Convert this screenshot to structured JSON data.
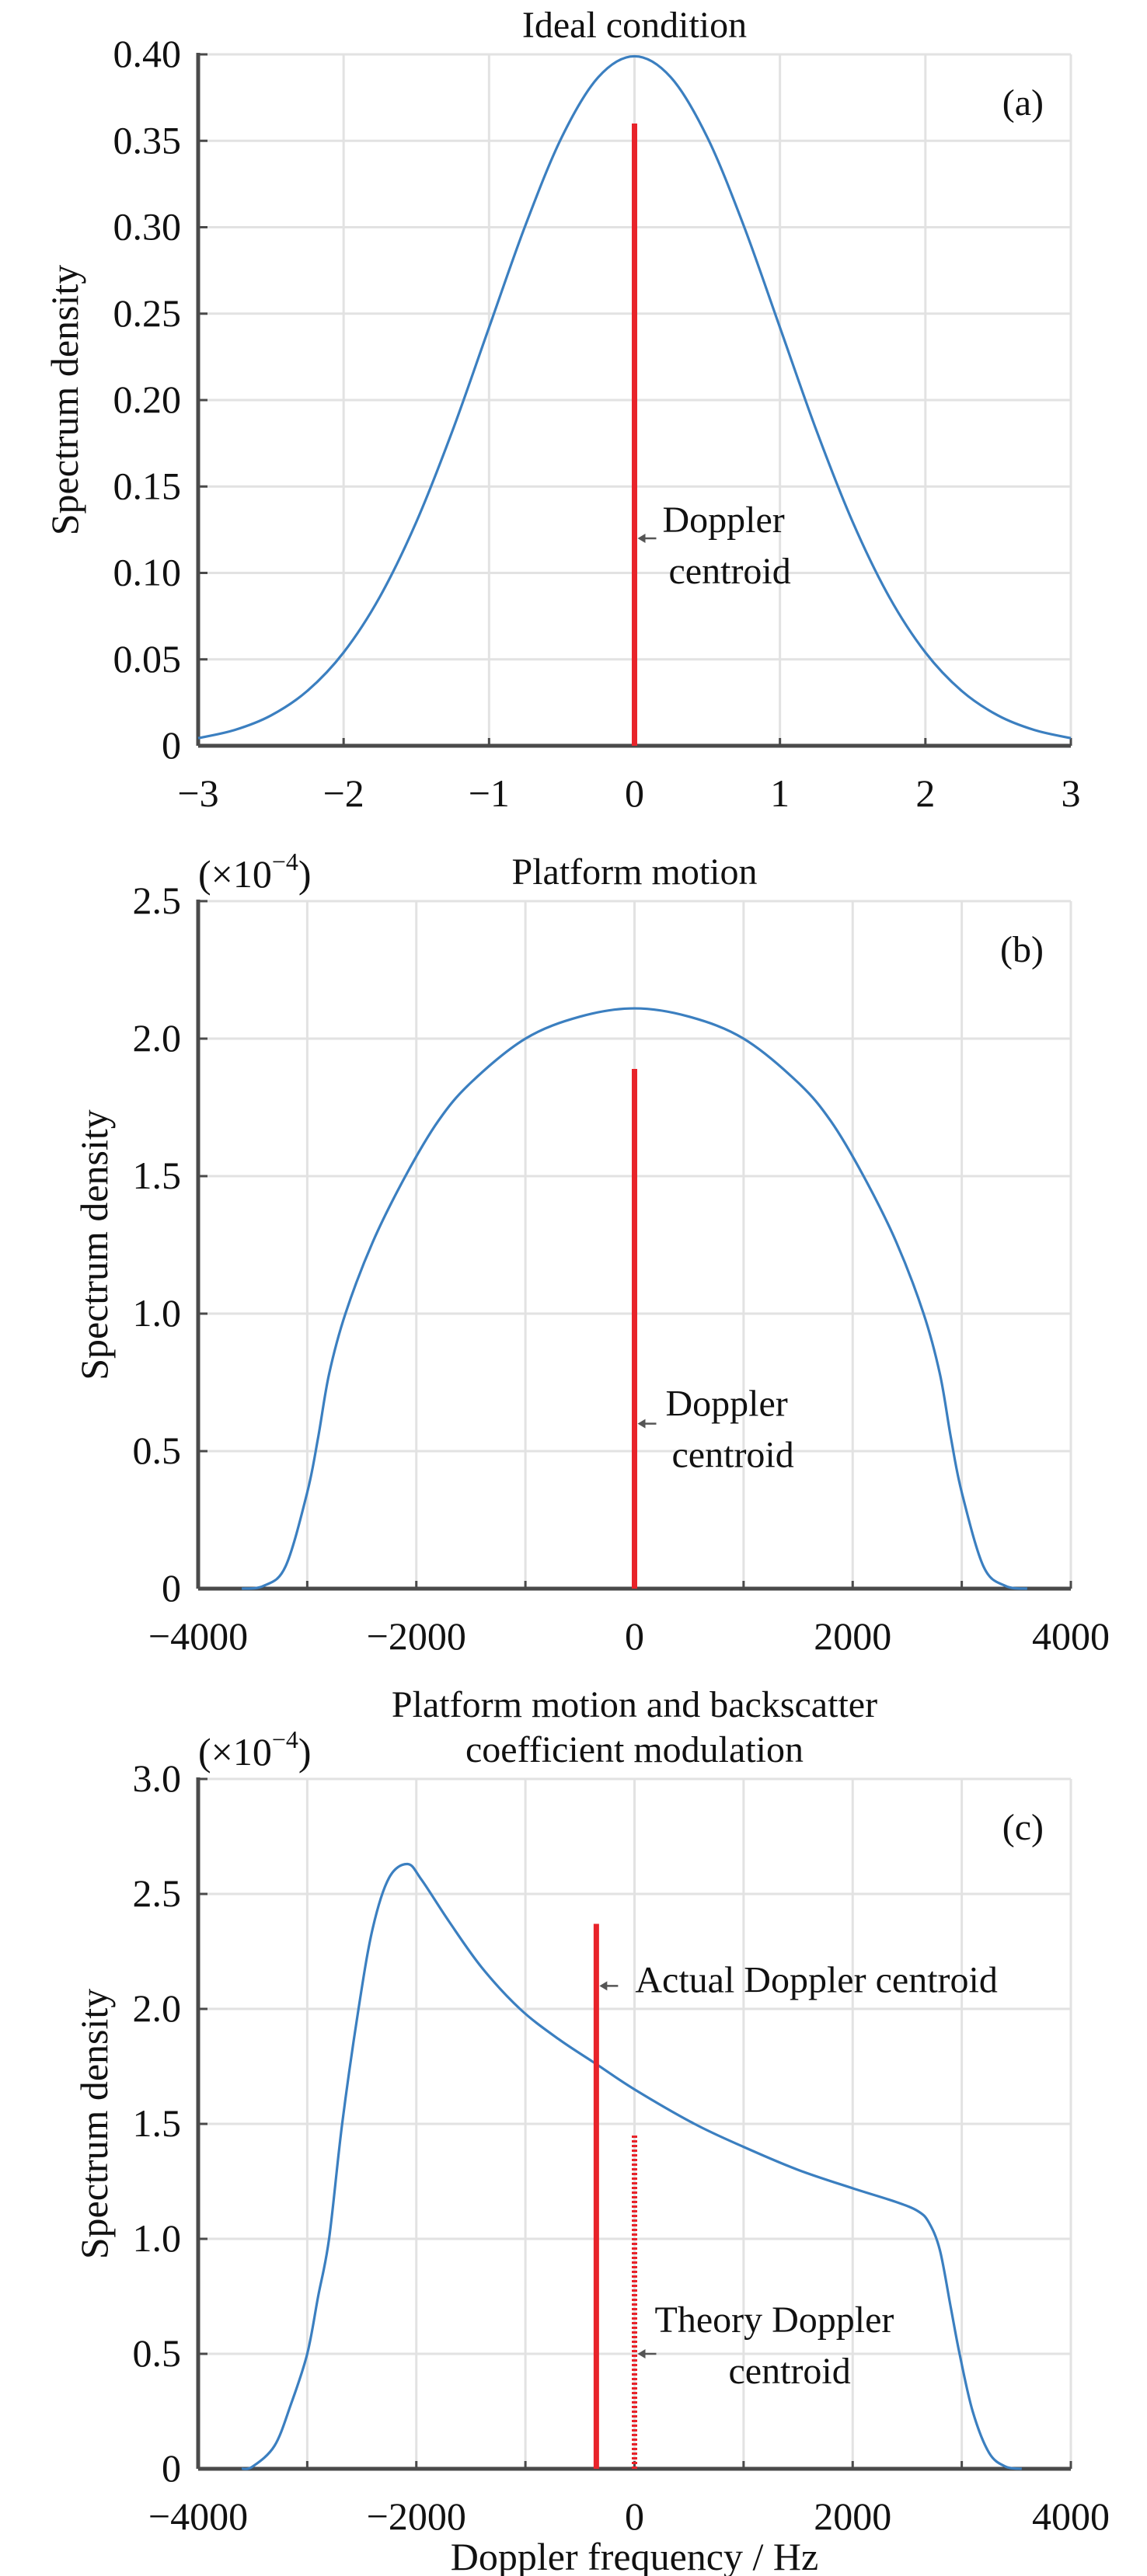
{
  "chart_data": [
    {
      "type": "line",
      "panel_label": "(a)",
      "title": [
        "Ideal condition"
      ],
      "ylabel": "Spectrum density",
      "xlabel": "",
      "xlim": [
        -3,
        3
      ],
      "ylim": [
        0,
        0.4
      ],
      "grid": true,
      "xticks": [
        -3,
        -2,
        -1,
        0,
        1,
        2,
        3
      ],
      "xtick_labels": [
        "−3",
        "−2",
        "−1",
        "0",
        "1",
        "2",
        "3"
      ],
      "xgrid": [
        -3,
        -2,
        -1,
        0,
        1,
        2,
        3
      ],
      "yticks": [
        0,
        0.05,
        0.1,
        0.15,
        0.2,
        0.25,
        0.3,
        0.35,
        0.4
      ],
      "ytick_labels": [
        "0",
        "0.05",
        "0.10",
        "0.15",
        "0.20",
        "0.25",
        "0.30",
        "0.35",
        "0.40"
      ],
      "curve": {
        "color": "#3b7fc0",
        "x": [
          -3,
          -2.75,
          -2.5,
          -2.25,
          -2,
          -1.75,
          -1.5,
          -1.25,
          -1,
          -0.75,
          -0.5,
          -0.25,
          0,
          0.25,
          0.5,
          0.75,
          1,
          1.25,
          1.5,
          1.75,
          2,
          2.25,
          2.5,
          2.75,
          3
        ],
        "y": [
          0.0044,
          0.0091,
          0.0175,
          0.0317,
          0.054,
          0.0863,
          0.1295,
          0.1826,
          0.242,
          0.3011,
          0.3521,
          0.3867,
          0.3989,
          0.3867,
          0.3521,
          0.3011,
          0.242,
          0.1826,
          0.1295,
          0.0863,
          0.054,
          0.0317,
          0.0175,
          0.0091,
          0.0044
        ]
      },
      "centroid_lines": [
        {
          "x": 0,
          "y": 0.36,
          "style": "solid",
          "color": "#e8232a"
        }
      ],
      "annotations": [
        {
          "lines": [
            "Doppler",
            "centroid"
          ],
          "arrow_to": [
            0,
            0.12
          ]
        }
      ]
    },
    {
      "type": "line",
      "panel_label": "(b)",
      "title": [
        "Platform motion"
      ],
      "multiplier": "(×10",
      "exponent": "−4",
      "multiplier_close": ")",
      "ylabel": "Spectrum density",
      "xlabel": "",
      "xlim": [
        -4000,
        4000
      ],
      "ylim": [
        0,
        2.5
      ],
      "grid": true,
      "xticks": [
        -4000,
        -2000,
        0,
        2000,
        4000
      ],
      "xtick_labels": [
        "−4000",
        "−2000",
        "0",
        "2000",
        "4000"
      ],
      "xgrid": [
        -4000,
        -3000,
        -2000,
        -1000,
        0,
        1000,
        2000,
        3000,
        4000
      ],
      "yticks": [
        0,
        0.5,
        1.0,
        1.5,
        2.0,
        2.5
      ],
      "ytick_labels": [
        "0",
        "0.5",
        "1.0",
        "1.5",
        "2.0",
        "2.5"
      ],
      "curve": {
        "color": "#3b7fc0",
        "x": [
          -3600,
          -3400,
          -3200,
          -3000,
          -2900,
          -2800,
          -2650,
          -2400,
          -2100,
          -1800,
          -1500,
          -1000,
          -500,
          0,
          500,
          1000,
          1500,
          1800,
          2100,
          2400,
          2650,
          2800,
          2900,
          3000,
          3200,
          3400,
          3600
        ],
        "y": [
          0,
          0.01,
          0.08,
          0.35,
          0.55,
          0.78,
          1.0,
          1.26,
          1.5,
          1.7,
          1.84,
          2.0,
          2.08,
          2.11,
          2.08,
          2.0,
          1.84,
          1.7,
          1.5,
          1.26,
          1.0,
          0.78,
          0.55,
          0.35,
          0.08,
          0.01,
          0
        ]
      },
      "centroid_lines": [
        {
          "x": 0,
          "y": 1.89,
          "style": "solid",
          "color": "#e8232a"
        }
      ],
      "annotations": [
        {
          "lines": [
            "Doppler",
            "centroid"
          ],
          "arrow_to": [
            0,
            0.6
          ]
        }
      ]
    },
    {
      "type": "line",
      "panel_label": "(c)",
      "title": [
        "Platform motion and backscatter",
        "coefficient modulation"
      ],
      "multiplier": "(×10",
      "exponent": "−4",
      "multiplier_close": ")",
      "ylabel": "Spectrum density",
      "xlabel": "Doppler frequency / Hz",
      "xlim": [
        -4000,
        4000
      ],
      "ylim": [
        0,
        3.0
      ],
      "grid": true,
      "xticks": [
        -4000,
        -2000,
        0,
        2000,
        4000
      ],
      "xtick_labels": [
        "−4000",
        "−2000",
        "0",
        "2000",
        "4000"
      ],
      "xgrid": [
        -4000,
        -3000,
        -2000,
        -1000,
        0,
        1000,
        2000,
        3000,
        4000
      ],
      "yticks": [
        0,
        0.5,
        1.0,
        1.5,
        2.0,
        2.5,
        3.0
      ],
      "ytick_labels": [
        "0",
        "0.5",
        "1.0",
        "1.5",
        "2.0",
        "2.5",
        "3.0"
      ],
      "curve": {
        "color": "#3b7fc0",
        "x": [
          -3600,
          -3500,
          -3300,
          -3150,
          -3000,
          -2900,
          -2800,
          -2680,
          -2530,
          -2400,
          -2250,
          -2080,
          -1950,
          -1700,
          -1400,
          -1050,
          -700,
          -350,
          0,
          550,
          1000,
          1500,
          2000,
          2400,
          2600,
          2700,
          2800,
          2900,
          2980,
          3100,
          3250,
          3400,
          3550
        ],
        "y": [
          0,
          0.01,
          0.1,
          0.28,
          0.5,
          0.75,
          1.0,
          1.5,
          2.0,
          2.35,
          2.57,
          2.63,
          2.56,
          2.38,
          2.18,
          2.0,
          1.87,
          1.76,
          1.65,
          1.5,
          1.4,
          1.3,
          1.22,
          1.16,
          1.12,
          1.07,
          0.95,
          0.7,
          0.5,
          0.25,
          0.07,
          0.01,
          0
        ]
      },
      "centroid_lines": [
        {
          "x": -350,
          "y": 2.37,
          "style": "solid",
          "color": "#e8232a"
        },
        {
          "x": 0,
          "y": 1.45,
          "style": "dotted",
          "color": "#e8232a"
        }
      ],
      "annotations": [
        {
          "lines": [
            "Actual Doppler centroid"
          ],
          "arrow_to": [
            -350,
            2.1
          ]
        },
        {
          "lines": [
            "Theory Doppler",
            "centroid"
          ],
          "arrow_to": [
            0,
            0.5
          ]
        }
      ]
    }
  ]
}
